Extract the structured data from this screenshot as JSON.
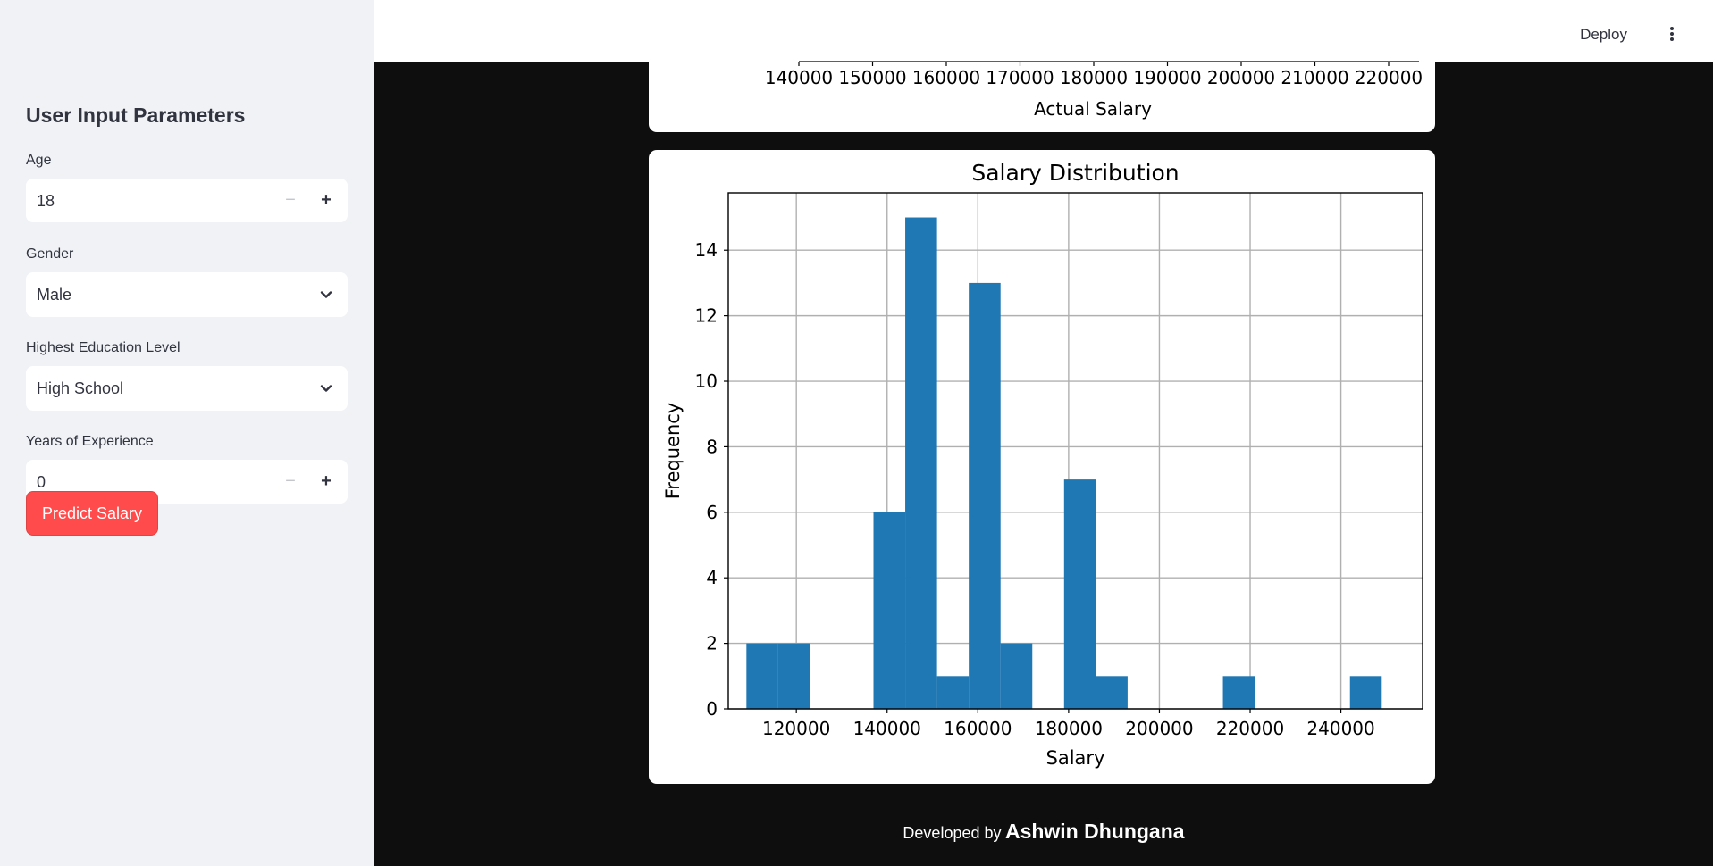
{
  "sidebar": {
    "title": "User Input Parameters",
    "age": {
      "label": "Age",
      "value": "18"
    },
    "gender": {
      "label": "Gender",
      "value": "Male"
    },
    "education": {
      "label": "Highest Education Level",
      "value": "High School"
    },
    "experience": {
      "label": "Years of Experience",
      "value": "0"
    },
    "predict_label": "Predict Salary"
  },
  "header": {
    "deploy_label": "Deploy"
  },
  "footer": {
    "prefix": "Developed by",
    "author": "Ashwin Dhungana"
  },
  "chart_data": [
    {
      "type": "scatter",
      "partial": true,
      "xlabel": "Actual Salary",
      "xticks": [
        140000,
        150000,
        160000,
        170000,
        180000,
        190000,
        200000,
        210000,
        220000
      ],
      "tick_labels": [
        "140000",
        "150000",
        "160000",
        "170000",
        "180000",
        "190000",
        "200000",
        "210000",
        "220000"
      ]
    },
    {
      "type": "bar",
      "title": "Salary Distribution",
      "xlabel": "Salary",
      "ylabel": "Frequency",
      "bar_color": "#1f77b4",
      "grid": true,
      "xlim": [
        105000,
        258000
      ],
      "ylim": [
        0,
        15.75
      ],
      "bin_width": 7000,
      "bins": [
        {
          "start": 109000,
          "count": 2
        },
        {
          "start": 116000,
          "count": 2
        },
        {
          "start": 137000,
          "count": 6
        },
        {
          "start": 144000,
          "count": 15
        },
        {
          "start": 151000,
          "count": 1
        },
        {
          "start": 158000,
          "count": 13
        },
        {
          "start": 165000,
          "count": 2
        },
        {
          "start": 179000,
          "count": 7
        },
        {
          "start": 186000,
          "count": 1
        },
        {
          "start": 214000,
          "count": 1
        },
        {
          "start": 242000,
          "count": 1
        }
      ],
      "xticks": [
        120000,
        140000,
        160000,
        180000,
        200000,
        220000,
        240000
      ],
      "xtick_labels": [
        "120000",
        "140000",
        "160000",
        "180000",
        "200000",
        "220000",
        "240000"
      ],
      "yticks": [
        0,
        2,
        4,
        6,
        8,
        10,
        12,
        14
      ],
      "ytick_labels": [
        "0",
        "2",
        "4",
        "6",
        "8",
        "10",
        "12",
        "14"
      ]
    }
  ]
}
